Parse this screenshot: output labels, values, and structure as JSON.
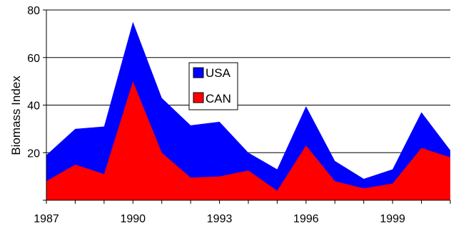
{
  "chart_data": {
    "type": "area",
    "stacked": true,
    "title": "",
    "xlabel": "",
    "ylabel": "Biomass Index",
    "x": [
      1987,
      1988,
      1989,
      1990,
      1991,
      1992,
      1993,
      1994,
      1995,
      1996,
      1997,
      1998,
      1999,
      2000,
      2001
    ],
    "x_tick_labels": [
      "1987",
      "1990",
      "1993",
      "1996",
      "1999"
    ],
    "y_ticks": [
      20,
      40,
      60,
      80
    ],
    "ylim": [
      0,
      80
    ],
    "grid": true,
    "legend_position": "center",
    "series": [
      {
        "name": "CAN",
        "color": "#ff0000",
        "values": [
          8,
          15,
          11,
          50,
          20,
          9.5,
          10,
          12.5,
          4,
          23,
          8,
          5,
          7,
          22,
          18
        ]
      },
      {
        "name": "USA",
        "color": "#0000ff",
        "values": [
          11,
          15,
          20,
          25,
          23,
          22,
          23,
          7.5,
          9,
          16.5,
          8.5,
          4,
          6,
          15,
          3
        ]
      }
    ],
    "legend": [
      {
        "name": "USA",
        "color": "#0000ff"
      },
      {
        "name": "CAN",
        "color": "#ff0000"
      }
    ]
  }
}
